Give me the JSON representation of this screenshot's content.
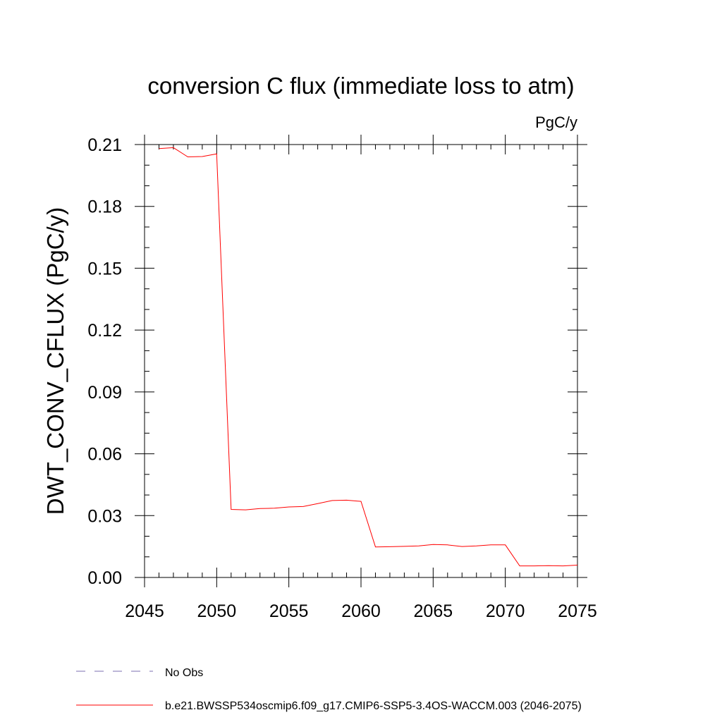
{
  "chart_data": {
    "type": "line",
    "title": "conversion C flux (immediate loss to atm)",
    "units": "PgC/y",
    "ylabel": "DWT_CONV_CFLUX  (PgC/y)",
    "xlabel": "",
    "xlim": [
      2045,
      2075
    ],
    "ylim": [
      0,
      0.21
    ],
    "xticks": [
      "2045",
      "2050",
      "2055",
      "2060",
      "2065",
      "2070",
      "2075"
    ],
    "yticks": [
      "0.00",
      "0.03",
      "0.06",
      "0.09",
      "0.12",
      "0.15",
      "0.18",
      "0.21"
    ],
    "grid": false,
    "legend_position": "bottom-left",
    "colors": {
      "model": "#ff0000",
      "obs": "#7b6fb0",
      "axis": "#000000"
    },
    "legend": [
      {
        "label": "No Obs",
        "style": "dashed"
      },
      {
        "label": "b.e21.BWSSP534oscmip6.f09_g17.CMIP6-SSP5-3.4OS-WACCM.003 (2046-2075)",
        "style": "solid"
      }
    ],
    "series": [
      {
        "name": "b.e21.BWSSP534oscmip6.f09_g17.CMIP6-SSP5-3.4OS-WACCM.003 (2046-2075)",
        "x": [
          2046,
          2047,
          2048,
          2049,
          2050,
          2051,
          2052,
          2053,
          2054,
          2055,
          2056,
          2057,
          2058,
          2059,
          2060,
          2061,
          2062,
          2063,
          2064,
          2065,
          2066,
          2067,
          2068,
          2069,
          2070,
          2071,
          2072,
          2073,
          2074,
          2075
        ],
        "values": [
          0.208,
          0.2085,
          0.204,
          0.2042,
          0.2055,
          0.033,
          0.0328,
          0.0334,
          0.0336,
          0.0342,
          0.0344,
          0.0358,
          0.0373,
          0.0375,
          0.0369,
          0.0148,
          0.0149,
          0.0151,
          0.0153,
          0.016,
          0.0158,
          0.015,
          0.0153,
          0.0158,
          0.0158,
          0.0056,
          0.0056,
          0.0057,
          0.0056,
          0.006
        ]
      }
    ]
  }
}
